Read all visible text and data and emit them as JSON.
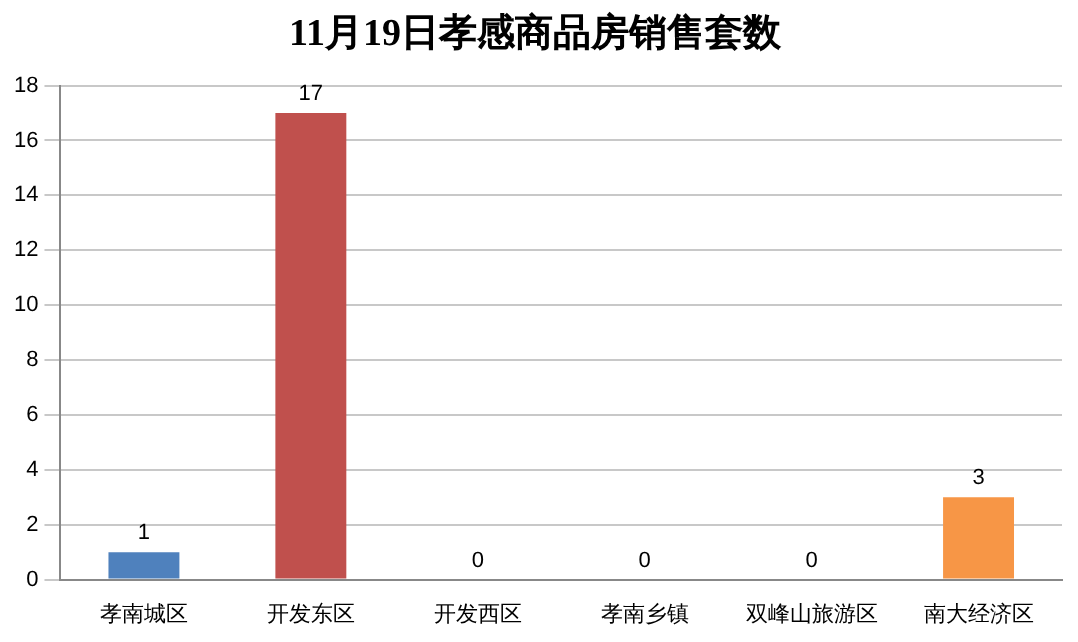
{
  "chart_data": {
    "type": "bar",
    "title": "11月19日孝感商品房销售套数",
    "categories": [
      "孝南城区",
      "开发东区",
      "开发西区",
      "孝南乡镇",
      "双峰山旅游区",
      "南大经济区"
    ],
    "values": [
      1,
      17,
      0,
      0,
      0,
      3
    ],
    "colors": [
      "#4f81bd",
      "#c0504d",
      "#4f81bd",
      "#4f81bd",
      "#4f81bd",
      "#f79646"
    ],
    "ylim": [
      0,
      18
    ],
    "yticks": [
      0,
      2,
      4,
      6,
      8,
      10,
      12,
      14,
      16,
      18
    ],
    "grid": "y",
    "data_labels": true,
    "legend": false
  }
}
